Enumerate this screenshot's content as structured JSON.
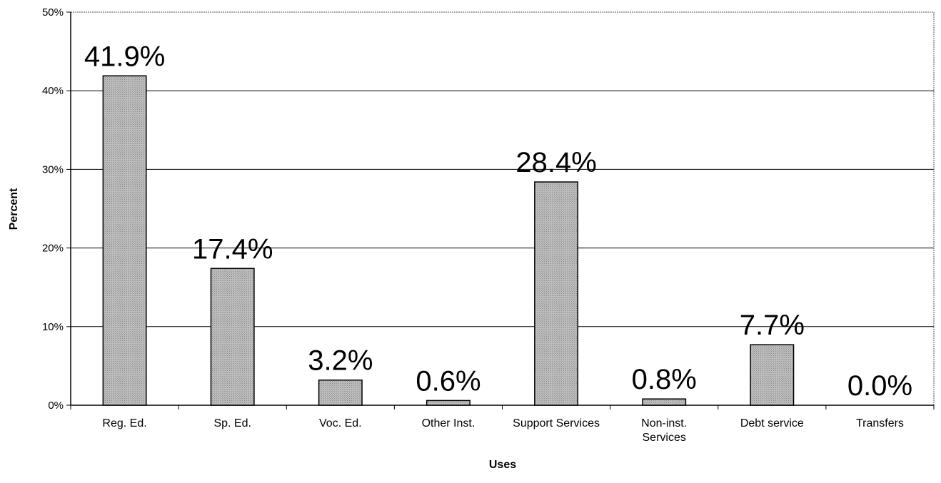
{
  "chart_data": {
    "type": "bar",
    "title": "",
    "xlabel": "Uses",
    "ylabel": "Percent",
    "categories": [
      [
        "Reg. Ed."
      ],
      [
        "Sp. Ed."
      ],
      [
        "Voc. Ed."
      ],
      [
        "Other Inst."
      ],
      [
        "Support Services"
      ],
      [
        "Non-inst.",
        "Services"
      ],
      [
        "Debt service"
      ],
      [
        "Transfers"
      ]
    ],
    "values": [
      41.9,
      17.4,
      3.2,
      0.6,
      28.4,
      0.8,
      7.7,
      0.0
    ],
    "value_labels": [
      "41.9%",
      "17.4%",
      "3.2%",
      "0.6%",
      "28.4%",
      "0.8%",
      "7.7%",
      "0.0%"
    ],
    "ylim": [
      0,
      50
    ],
    "yticks": [
      0,
      10,
      20,
      30,
      40,
      50
    ],
    "ytick_labels": [
      "0%",
      "10%",
      "20%",
      "30%",
      "40%",
      "50%"
    ],
    "grid": true,
    "legend": "none",
    "colors": {
      "bar_fill": "#b8b8b8",
      "bar_stroke": "#000000",
      "grid": "#000000",
      "background": "#ffffff"
    }
  }
}
